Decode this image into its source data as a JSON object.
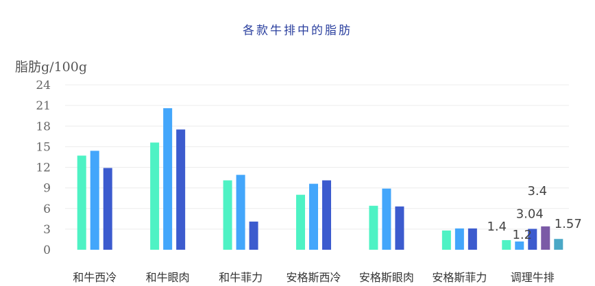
{
  "chart_data": {
    "type": "bar",
    "title": "各款牛排中的脂肪",
    "ylabel": "脂肪g/100g",
    "xlabel": "",
    "ylim": [
      0,
      24
    ],
    "yticks": [
      0,
      3,
      6,
      9,
      12,
      15,
      18,
      21,
      24
    ],
    "grid": true,
    "categories": [
      "和牛西冷",
      "和牛眼肉",
      "和牛菲力",
      "安格斯西冷",
      "安格斯眼肉",
      "安格斯菲力",
      "调理牛排"
    ],
    "groups": [
      {
        "values": [
          13.7,
          14.4,
          11.9
        ],
        "colors": [
          "#4ef2c4",
          "#43a6fb",
          "#3c5bce"
        ]
      },
      {
        "values": [
          15.6,
          20.6,
          17.5
        ],
        "colors": [
          "#4ef2c4",
          "#43a6fb",
          "#3c5bce"
        ]
      },
      {
        "values": [
          10.1,
          10.9,
          4.1
        ],
        "colors": [
          "#4ef2c4",
          "#43a6fb",
          "#3c5bce"
        ]
      },
      {
        "values": [
          8.0,
          9.6,
          10.1
        ],
        "colors": [
          "#4ef2c4",
          "#43a6fb",
          "#3c5bce"
        ]
      },
      {
        "values": [
          6.4,
          8.9,
          6.3
        ],
        "colors": [
          "#4ef2c4",
          "#43a6fb",
          "#3c5bce"
        ]
      },
      {
        "values": [
          2.8,
          3.1,
          3.1
        ],
        "colors": [
          "#4ef2c4",
          "#43a6fb",
          "#3c5bce"
        ]
      },
      {
        "values": [
          1.4,
          1.2,
          3.04,
          3.4,
          1.57
        ],
        "colors": [
          "#4ef2c4",
          "#43a6fb",
          "#3c5bce",
          "#7b5aa6",
          "#4aa8c6"
        ],
        "labels": [
          "1.4",
          "1.2",
          "3.04",
          "3.4",
          "1.57"
        ]
      }
    ]
  }
}
